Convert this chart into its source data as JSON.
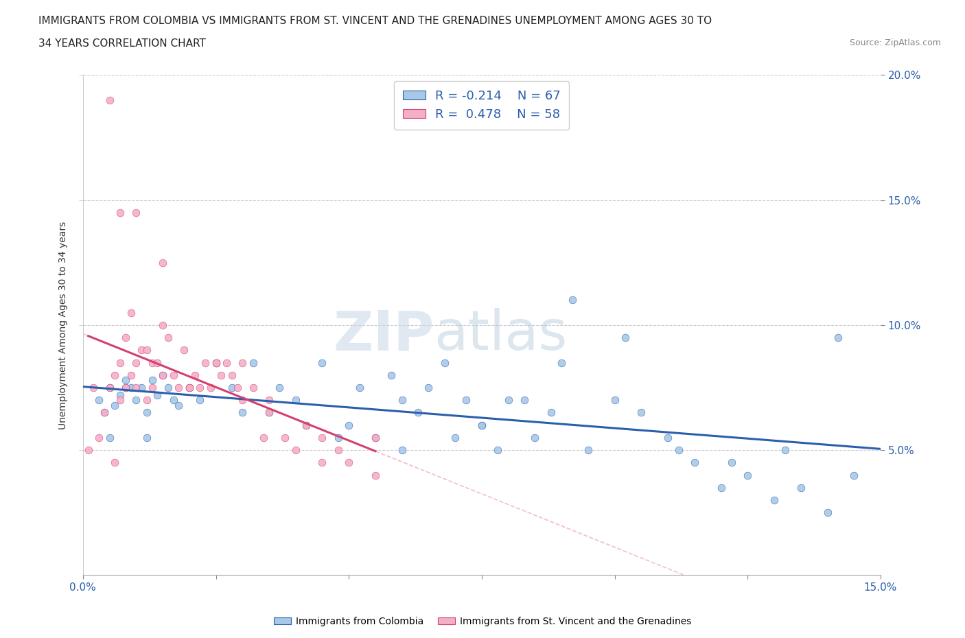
{
  "title_line1": "IMMIGRANTS FROM COLOMBIA VS IMMIGRANTS FROM ST. VINCENT AND THE GRENADINES UNEMPLOYMENT AMONG AGES 30 TO",
  "title_line2": "34 YEARS CORRELATION CHART",
  "source": "Source: ZipAtlas.com",
  "ylabel": "Unemployment Among Ages 30 to 34 years",
  "legend1_label": "Immigrants from Colombia",
  "legend2_label": "Immigrants from St. Vincent and the Grenadines",
  "r1": -0.214,
  "n1": 67,
  "r2": 0.478,
  "n2": 58,
  "xlim": [
    0.0,
    15.0
  ],
  "ylim": [
    0.0,
    20.0
  ],
  "yticks": [
    5.0,
    10.0,
    15.0,
    20.0
  ],
  "color_colombia": "#a8c8e8",
  "color_stvincent": "#f4afc8",
  "color_trendline_colombia": "#2b5fac",
  "color_trendline_stvincent": "#d44070",
  "watermark_zip": "ZIP",
  "watermark_atlas": "atlas",
  "colombia_x": [
    0.3,
    0.4,
    0.5,
    0.6,
    0.7,
    0.8,
    0.9,
    1.0,
    1.1,
    1.2,
    1.3,
    1.4,
    1.5,
    1.6,
    1.8,
    2.0,
    2.2,
    2.5,
    2.8,
    3.0,
    3.5,
    4.0,
    4.5,
    5.0,
    5.5,
    6.0,
    6.5,
    7.0,
    7.5,
    8.0,
    8.5,
    9.0,
    9.5,
    10.0,
    10.5,
    11.0,
    11.5,
    12.0,
    12.5,
    13.0,
    13.5,
    14.0,
    14.5,
    5.2,
    5.8,
    6.3,
    7.2,
    7.8,
    8.3,
    9.2,
    3.2,
    3.7,
    4.2,
    4.8,
    6.0,
    6.8,
    7.5,
    8.8,
    10.2,
    11.2,
    12.2,
    13.2,
    14.2,
    0.5,
    0.8,
    1.2,
    1.7
  ],
  "colombia_y": [
    7.0,
    6.5,
    7.5,
    6.8,
    7.2,
    7.8,
    7.5,
    7.0,
    7.5,
    6.5,
    7.8,
    7.2,
    8.0,
    7.5,
    6.8,
    7.5,
    7.0,
    8.5,
    7.5,
    6.5,
    6.5,
    7.0,
    8.5,
    6.0,
    5.5,
    7.0,
    7.5,
    5.5,
    6.0,
    7.0,
    5.5,
    8.5,
    5.0,
    7.0,
    6.5,
    5.5,
    4.5,
    3.5,
    4.0,
    3.0,
    3.5,
    2.5,
    4.0,
    7.5,
    8.0,
    6.5,
    7.0,
    5.0,
    7.0,
    11.0,
    8.5,
    7.5,
    6.0,
    5.5,
    5.0,
    8.5,
    6.0,
    6.5,
    9.5,
    5.0,
    4.5,
    5.0,
    9.5,
    5.5,
    7.5,
    5.5,
    7.0
  ],
  "stvincent_x": [
    0.1,
    0.2,
    0.3,
    0.4,
    0.5,
    0.6,
    0.6,
    0.7,
    0.7,
    0.8,
    0.8,
    0.9,
    0.9,
    1.0,
    1.0,
    1.1,
    1.2,
    1.2,
    1.3,
    1.3,
    1.4,
    1.5,
    1.5,
    1.6,
    1.7,
    1.8,
    1.9,
    2.0,
    2.1,
    2.2,
    2.3,
    2.4,
    2.5,
    2.6,
    2.7,
    2.8,
    2.9,
    3.0,
    3.2,
    3.4,
    3.5,
    3.8,
    4.0,
    4.2,
    4.5,
    4.8,
    5.0,
    5.5,
    0.5,
    0.7,
    1.0,
    1.5,
    2.0,
    2.5,
    3.0,
    3.5,
    4.5,
    5.5
  ],
  "stvincent_y": [
    5.0,
    7.5,
    5.5,
    6.5,
    7.5,
    8.0,
    4.5,
    7.0,
    8.5,
    7.5,
    9.5,
    8.0,
    10.5,
    7.5,
    8.5,
    9.0,
    7.0,
    9.0,
    8.5,
    7.5,
    8.5,
    10.0,
    8.0,
    9.5,
    8.0,
    7.5,
    9.0,
    7.5,
    8.0,
    7.5,
    8.5,
    7.5,
    8.5,
    8.0,
    8.5,
    8.0,
    7.5,
    7.0,
    7.5,
    5.5,
    6.5,
    5.5,
    5.0,
    6.0,
    4.5,
    5.0,
    4.5,
    4.0,
    19.0,
    14.5,
    14.5,
    12.5,
    7.5,
    8.5,
    8.5,
    7.0,
    5.5,
    5.5
  ]
}
